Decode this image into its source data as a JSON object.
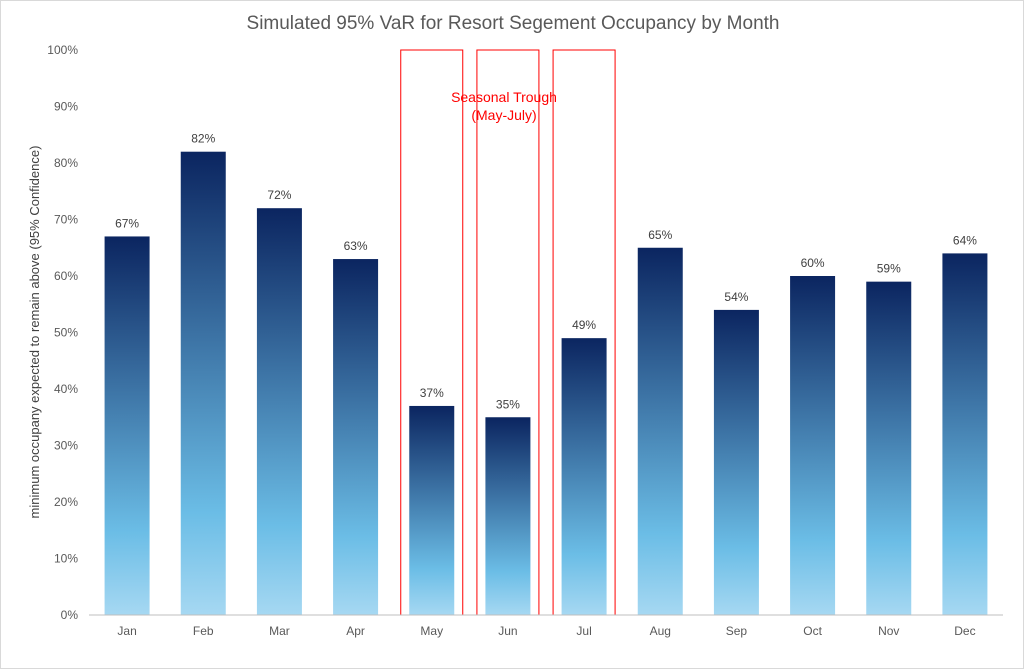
{
  "chart_data": {
    "type": "bar",
    "title": "Simulated 95% VaR for Resort Segement Occupancy by Month",
    "xlabel": "",
    "ylabel": "minimum occupany expected to remain above (95% Confidence)",
    "categories": [
      "Jan",
      "Feb",
      "Mar",
      "Apr",
      "May",
      "Jun",
      "Jul",
      "Aug",
      "Sep",
      "Oct",
      "Nov",
      "Dec"
    ],
    "values": [
      67,
      82,
      72,
      63,
      37,
      35,
      49,
      65,
      54,
      60,
      59,
      64
    ],
    "data_labels": [
      "67%",
      "82%",
      "72%",
      "63%",
      "37%",
      "35%",
      "49%",
      "65%",
      "54%",
      "60%",
      "59%",
      "64%"
    ],
    "ylim": [
      0,
      100
    ],
    "y_ticks": [
      0,
      10,
      20,
      30,
      40,
      50,
      60,
      70,
      80,
      90,
      100
    ],
    "y_tick_labels": [
      "0%",
      "10%",
      "20%",
      "30%",
      "40%",
      "50%",
      "60%",
      "70%",
      "80%",
      "90%",
      "100%"
    ],
    "grid": false,
    "legend": "none",
    "highlighted_categories": [
      "May",
      "Jun",
      "Jul"
    ],
    "annotation": {
      "lines": [
        "Seasonal Trough",
        "(May-July)"
      ],
      "color": "#ff0000"
    },
    "colors": {
      "bar_top": "#0b2560",
      "bar_mid": "#6bbde6",
      "bar_bottom": "#a6d8f2",
      "axis": "#bfbfbf",
      "text": "#595959",
      "highlight": "#ff0000"
    }
  }
}
